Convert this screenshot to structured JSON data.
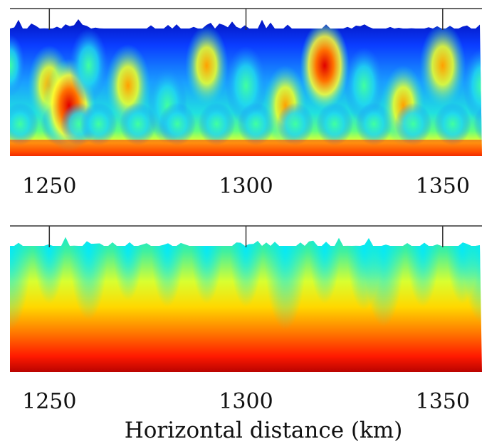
{
  "chart_data": [
    {
      "type": "heatmap",
      "title": "",
      "xlabel": "",
      "ylabel": "",
      "x_ticks": [
        1250,
        1300,
        1350
      ],
      "x_tick_labels": [
        "1250",
        "1300",
        "1350"
      ],
      "xlim": [
        1240,
        1360
      ],
      "colormap": "jet",
      "colors": [
        "#00007f",
        "#0000ff",
        "#007fff",
        "#00ffff",
        "#7fff7f",
        "#ffff00",
        "#ff7f00",
        "#ff0000",
        "#7f0000"
      ],
      "intensity_profile": [
        {
          "x": 1240,
          "level": 0.12
        },
        {
          "x": 1250,
          "level": 0.55
        },
        {
          "x": 1255,
          "level": 0.85
        },
        {
          "x": 1260,
          "level": 0.4
        },
        {
          "x": 1270,
          "level": 0.6
        },
        {
          "x": 1280,
          "level": 0.45
        },
        {
          "x": 1290,
          "level": 0.55
        },
        {
          "x": 1300,
          "level": 0.5
        },
        {
          "x": 1310,
          "level": 0.55
        },
        {
          "x": 1320,
          "level": 0.75
        },
        {
          "x": 1330,
          "level": 0.45
        },
        {
          "x": 1340,
          "level": 0.55
        },
        {
          "x": 1350,
          "level": 0.65
        },
        {
          "x": 1360,
          "level": 0.4
        }
      ]
    },
    {
      "type": "heatmap",
      "title": "",
      "xlabel": "Horizontal distance (km)",
      "ylabel": "",
      "x_ticks": [
        1250,
        1300,
        1350
      ],
      "x_tick_labels": [
        "1250",
        "1300",
        "1350"
      ],
      "xlim": [
        1240,
        1360
      ],
      "colormap": "jet",
      "colors": [
        "#00ffff",
        "#7fff7f",
        "#ffff00",
        "#ff7f00",
        "#ff0000",
        "#7f0000"
      ],
      "intensity_profile": [
        {
          "x": 1240,
          "level": 0.3
        },
        {
          "x": 1250,
          "level": 0.7
        },
        {
          "x": 1260,
          "level": 0.45
        },
        {
          "x": 1270,
          "level": 0.75
        },
        {
          "x": 1280,
          "level": 0.65
        },
        {
          "x": 1290,
          "level": 0.7
        },
        {
          "x": 1300,
          "level": 0.65
        },
        {
          "x": 1310,
          "level": 0.3
        },
        {
          "x": 1320,
          "level": 0.7
        },
        {
          "x": 1330,
          "level": 0.6
        },
        {
          "x": 1335,
          "level": 0.35
        },
        {
          "x": 1345,
          "level": 0.65
        },
        {
          "x": 1355,
          "level": 0.7
        },
        {
          "x": 1360,
          "level": 0.4
        }
      ]
    }
  ]
}
